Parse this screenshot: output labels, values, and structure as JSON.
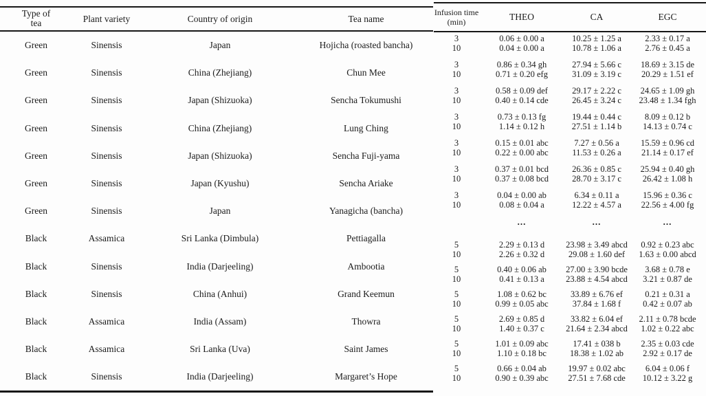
{
  "left_table": {
    "headers": [
      "Type of tea",
      "Plant variety",
      "Country of origin",
      "Tea name"
    ],
    "rows": [
      {
        "type": "Green",
        "variety": "Sinensis",
        "origin": "Japan",
        "name": "Hojicha (roasted bancha)"
      },
      {
        "type": "Green",
        "variety": "Sinensis",
        "origin": "China (Zhejiang)",
        "name": "Chun Mee"
      },
      {
        "type": "Green",
        "variety": "Sinensis",
        "origin": "Japan (Shizuoka)",
        "name": "Sencha Tokumushi"
      },
      {
        "type": "Green",
        "variety": "Sinensis",
        "origin": "China (Zhejiang)",
        "name": "Lung Ching"
      },
      {
        "type": "Green",
        "variety": "Sinensis",
        "origin": "Japan (Shizuoka)",
        "name": "Sencha Fuji-yama"
      },
      {
        "type": "Green",
        "variety": "Sinensis",
        "origin": "Japan (Kyushu)",
        "name": "Sencha Ariake"
      },
      {
        "type": "Green",
        "variety": "Sinensis",
        "origin": "Japan",
        "name": "Yanagicha (bancha)"
      },
      {
        "type": "Black",
        "variety": "Assamica",
        "origin": "Sri Lanka (Dimbula)",
        "name": "Pettiagalla"
      },
      {
        "type": "Black",
        "variety": "Sinensis",
        "origin": "India (Darjeeling)",
        "name": "Ambootia"
      },
      {
        "type": "Black",
        "variety": "Sinensis",
        "origin": "China (Anhui)",
        "name": "Grand Keemun"
      },
      {
        "type": "Black",
        "variety": "Assamica",
        "origin": "India (Assam)",
        "name": "Thowra"
      },
      {
        "type": "Black",
        "variety": "Assamica",
        "origin": "Sri Lanka (Uva)",
        "name": "Saint James"
      },
      {
        "type": "Black",
        "variety": "Sinensis",
        "origin": "India (Darjeeling)",
        "name": "Margaret’s Hope"
      }
    ]
  },
  "right_table": {
    "headers": [
      "Infusion time (min)",
      "THEO",
      "CA",
      "EGC"
    ],
    "break_after_group": 7,
    "break_symbol": "...",
    "groups": [
      [
        [
          "3",
          "0.06 ± 0.00 a",
          "10.25 ± 1.25 a",
          "2.33 ± 0.17 a"
        ],
        [
          "10",
          "0.04 ± 0.00 a",
          "10.78 ± 1.06 a",
          "2.76 ± 0.45 a"
        ]
      ],
      [
        [
          "3",
          "0.86 ± 0.34 gh",
          "27.94 ± 5.66 c",
          "18.69 ± 3.15 de"
        ],
        [
          "10",
          "0.71 ± 0.20 efg",
          "31.09 ± 3.19 c",
          "20.29 ± 1.51 ef"
        ]
      ],
      [
        [
          "3",
          "0.58 ± 0.09 def",
          "29.17 ± 2.22 c",
          "24.65 ± 1.09 gh"
        ],
        [
          "10",
          "0.40 ± 0.14 cde",
          "26.45 ± 3.24 c",
          "23.48 ± 1.34 fgh"
        ]
      ],
      [
        [
          "3",
          "0.73 ± 0.13 fg",
          "19.44 ± 0.44 c",
          "8.09 ± 0.12 b"
        ],
        [
          "10",
          "1.14 ± 0.12 h",
          "27.51 ± 1.14 b",
          "14.13 ± 0.74 c"
        ]
      ],
      [
        [
          "3",
          "0.15 ± 0.01 abc",
          "7.27 ± 0.56 a",
          "15.59 ± 0.96 cd"
        ],
        [
          "10",
          "0.22 ± 0.00 abc",
          "11.53 ± 0.26 a",
          "21.14 ± 0.17 ef"
        ]
      ],
      [
        [
          "3",
          "0.37 ± 0.01 bcd",
          "26.36 ± 0.85 c",
          "25.94 ± 0.40 gh"
        ],
        [
          "10",
          "0.37 ± 0.08 bcd",
          "28.70 ± 3.17 c",
          "26.42 ± 1.08 h"
        ]
      ],
      [
        [
          "3",
          "0.04 ± 0.00 ab",
          "6.34 ± 0.11 a",
          "15.96 ± 0.36 c"
        ],
        [
          "10",
          "0.08 ± 0.04 a",
          "12.22 ± 4.57 a",
          "22.56 ± 4.00 fg"
        ]
      ],
      [
        [
          "5",
          "2.29 ± 0.13 d",
          "23.98 ± 3.49 abcd",
          "0.92 ± 0.23 abc"
        ],
        [
          "10",
          "2.26 ± 0.32 d",
          "29.08 ± 1.60 def",
          "1.63 ± 0.00 abcd"
        ]
      ],
      [
        [
          "5",
          "0.40 ± 0.06 ab",
          "27.00 ± 3.90 bcde",
          "3.68 ± 0.78 e"
        ],
        [
          "10",
          "0.41 ± 0.13 a",
          "23.88 ± 4.54 abcd",
          "3.21 ± 0.87 de"
        ]
      ],
      [
        [
          "5",
          "1.08 ± 0.62 bc",
          "33.89 ± 6.76 ef",
          "0.21 ± 0.31 a"
        ],
        [
          "10",
          "0.99 ± 0.05 abc",
          "37.84 ± 1.68 f",
          "0.42 ± 0.07 ab"
        ]
      ],
      [
        [
          "5",
          "2.69 ± 0.85 d",
          "33.82 ± 6.04 ef",
          "2.11 ± 0.78 bcde"
        ],
        [
          "10",
          "1.40 ± 0.37 c",
          "21.64 ± 2.34 abcd",
          "1.02 ± 0.22 abc"
        ]
      ],
      [
        [
          "5",
          "1.01 ± 0.09 abc",
          "17.41 ± 038 b",
          "2.35 ± 0.03 cde"
        ],
        [
          "10",
          "1.10 ± 0.18 bc",
          "18.38 ± 1.02 ab",
          "2.92 ± 0.17 de"
        ]
      ],
      [
        [
          "5",
          "0.66 ± 0.04 ab",
          "19.97 ± 0.02 abc",
          "6.04 ± 0.06 f"
        ],
        [
          "10",
          "0.90 ± 0.39 abc",
          "27.51 ± 7.68 cde",
          "10.12 ± 3.22 g"
        ]
      ]
    ]
  }
}
